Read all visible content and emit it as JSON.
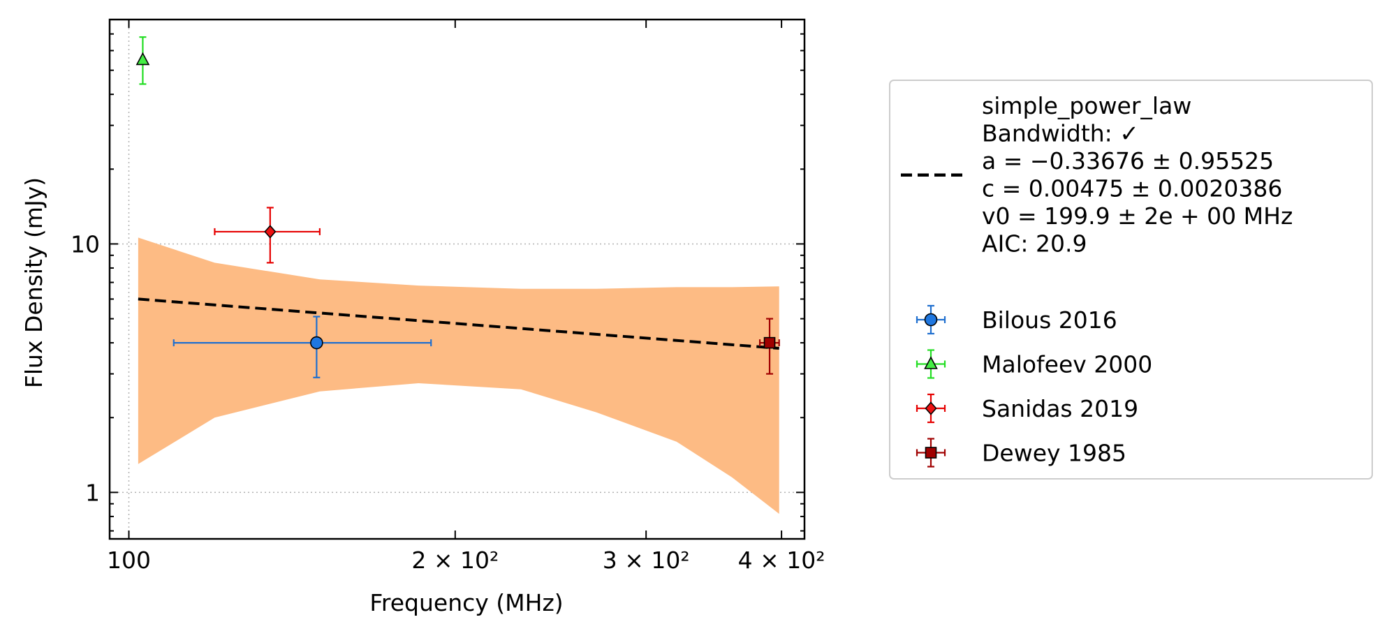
{
  "chart_data": {
    "type": "scatter",
    "xlabel": "Frequency (MHz)",
    "ylabel": "Flux Density (mJy)",
    "xscale": "log",
    "yscale": "log",
    "xlim": [
      96,
      420
    ],
    "ylim": [
      0.65,
      80
    ],
    "grid": "dotted, at labeled ticks",
    "legend_placement": "outside right",
    "x_tick_labels": [
      {
        "value": 100,
        "label": "100"
      },
      {
        "value": 200,
        "label": "2 × 10²"
      },
      {
        "value": 300,
        "label": "3 × 10²"
      },
      {
        "value": 400,
        "label": "4 × 10²"
      }
    ],
    "y_tick_labels": [
      {
        "value": 1,
        "label": "1"
      },
      {
        "value": 10,
        "label": "10"
      }
    ],
    "fit": {
      "model": "simple_power_law",
      "label_lines": [
        "simple_power_law",
        "Bandwidth: ✓",
        "a = −0.33676 ± 0.95525",
        "c = 0.00475 ± 0.0020386",
        "v0 = 199.9 ± 2e + 00 MHz",
        "AIC: 20.9"
      ],
      "line_x": [
        102,
        398
      ],
      "line_y": [
        6.0,
        3.8
      ],
      "band_color": "#fdbb84",
      "band_x": [
        102,
        120,
        150,
        185,
        230,
        270,
        320,
        360,
        398
      ],
      "band_upper": [
        10.6,
        8.4,
        7.2,
        6.8,
        6.6,
        6.6,
        6.7,
        6.7,
        6.75
      ],
      "band_lower": [
        1.3,
        2.0,
        2.55,
        2.75,
        2.6,
        2.1,
        1.6,
        1.15,
        0.82
      ]
    },
    "series": [
      {
        "name": "Bilous 2016",
        "marker": "circle",
        "color": "#1f77e0",
        "edge_color": "#000000",
        "ecolor": "#1f6fcf",
        "x": 149,
        "y": 4.0,
        "x_err": [
          110,
          190
        ],
        "y_err": [
          2.9,
          5.1
        ]
      },
      {
        "name": "Malofeev 2000",
        "marker": "triangle",
        "color": "#44ee44",
        "edge_color": "#000000",
        "ecolor": "#22dd22",
        "x": 103,
        "y": 55,
        "x_err": null,
        "y_err": [
          44,
          68
        ]
      },
      {
        "name": "Sanidas 2019",
        "marker": "diamond",
        "color": "#ee1111",
        "edge_color": "#000000",
        "ecolor": "#e60000",
        "x": 135,
        "y": 11.2,
        "x_err": [
          120,
          150
        ],
        "y_err": [
          8.4,
          14.0
        ]
      },
      {
        "name": "Dewey 1985",
        "marker": "square",
        "color": "#a00000",
        "edge_color": "#000000",
        "ecolor": "#a00000",
        "x": 390,
        "y": 4.0,
        "x_err": [
          382,
          398
        ],
        "y_err": [
          3.0,
          5.0
        ]
      }
    ]
  }
}
